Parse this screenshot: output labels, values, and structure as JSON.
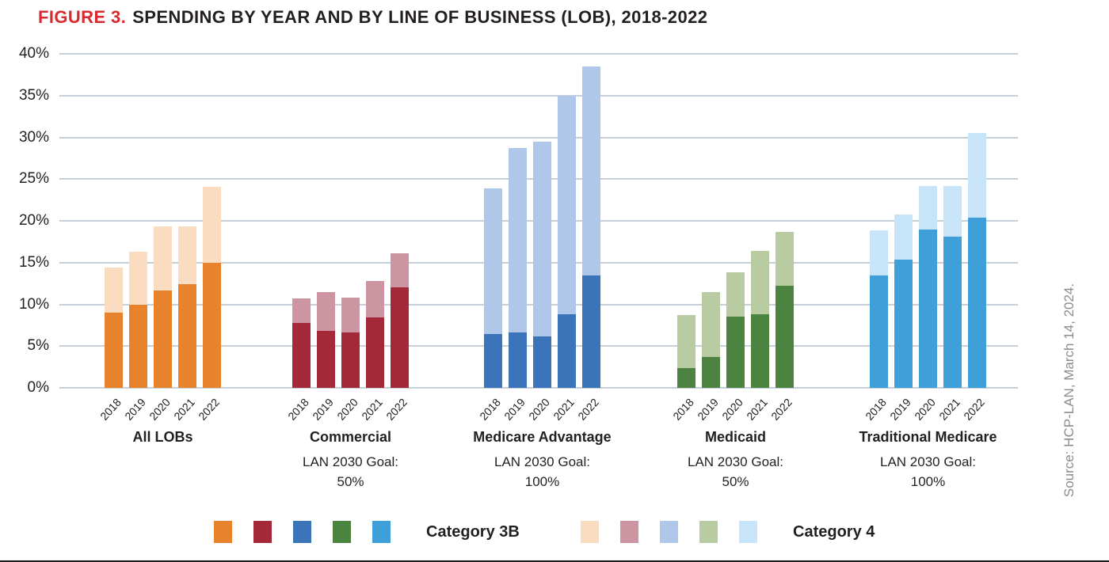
{
  "figure": {
    "label": "FIGURE 3.",
    "title": "SPENDING BY YEAR AND BY LINE OF BUSINESS (LOB), 2018-2022",
    "source": "Source: HCP-LAN, March 14, 2024."
  },
  "colors": {
    "figure_label_red": "#d8292f",
    "text": "#231f20",
    "gridline": "#c6ced8",
    "source_text": "#8a8d90"
  },
  "chart_data": {
    "type": "bar",
    "stacked": true,
    "grid": true,
    "ylim": [
      0,
      40
    ],
    "yticks": [
      "40%",
      "35%",
      "30%",
      "25%",
      "20%",
      "15%",
      "10%",
      "5%",
      "0%"
    ],
    "categories": [
      "2018",
      "2019",
      "2020",
      "2021",
      "2022"
    ],
    "series_names": [
      "Category 3B",
      "Category 4"
    ],
    "groups": [
      {
        "label": "All LOBs",
        "goal_label": "",
        "goal_value": "",
        "color_cat3b": "#e8822d",
        "color_cat4": "#fadcc1",
        "cat3b": [
          9.0,
          10.0,
          11.7,
          12.4,
          15.0
        ],
        "cat4": [
          5.4,
          6.3,
          7.6,
          6.9,
          9.1
        ],
        "totals": [
          14.4,
          16.3,
          19.3,
          19.3,
          24.1
        ]
      },
      {
        "label": "Commercial",
        "goal_label": "LAN 2030 Goal:",
        "goal_value": "50%",
        "color_cat3b": "#a42938",
        "color_cat4": "#cd95a1",
        "cat3b": [
          7.8,
          6.8,
          6.6,
          8.4,
          12.0
        ],
        "cat4": [
          2.9,
          4.7,
          4.2,
          4.4,
          4.1
        ],
        "totals": [
          10.7,
          11.5,
          10.8,
          12.8,
          16.1
        ]
      },
      {
        "label": "Medicare Advantage",
        "goal_label": "LAN 2030 Goal:",
        "goal_value": "100%",
        "color_cat3b": "#3c74ba",
        "color_cat4": "#afc7e8",
        "cat3b": [
          6.4,
          6.6,
          6.2,
          8.8,
          13.5
        ],
        "cat4": [
          17.5,
          22.1,
          23.3,
          26.2,
          25.0
        ],
        "totals": [
          23.9,
          28.7,
          29.5,
          35.0,
          38.5
        ]
      },
      {
        "label": "Medicaid",
        "goal_label": "LAN 2030 Goal:",
        "goal_value": "50%",
        "color_cat3b": "#4c8340",
        "color_cat4": "#b9cba3",
        "cat3b": [
          2.4,
          3.7,
          8.5,
          8.8,
          12.2
        ],
        "cat4": [
          6.3,
          7.8,
          5.3,
          7.6,
          6.5
        ],
        "totals": [
          8.7,
          11.5,
          13.8,
          16.4,
          18.7
        ]
      },
      {
        "label": "Traditional Medicare",
        "goal_label": "LAN 2030 Goal:",
        "goal_value": "100%",
        "color_cat3b": "#3fa0d9",
        "color_cat4": "#c8e4f8",
        "cat3b": [
          13.5,
          15.4,
          19.0,
          18.1,
          20.4
        ],
        "cat4": [
          5.4,
          5.4,
          5.2,
          6.1,
          10.1
        ],
        "totals": [
          18.9,
          20.8,
          24.2,
          24.2,
          30.5
        ]
      }
    ],
    "legend": {
      "cat3b": {
        "label": "Category 3B",
        "swatches": [
          "#e8822d",
          "#a42938",
          "#3c74ba",
          "#4c8340",
          "#3fa0d9"
        ]
      },
      "cat4": {
        "label": "Category 4",
        "swatches": [
          "#fadcc1",
          "#cd95a1",
          "#afc7e8",
          "#b9cba3",
          "#c8e4f8"
        ]
      }
    },
    "legend_position": "bottom"
  }
}
